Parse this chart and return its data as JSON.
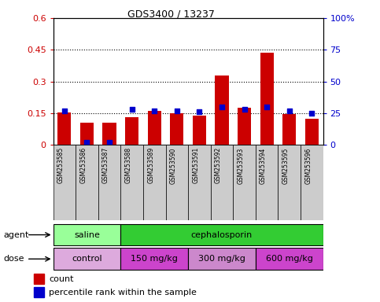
{
  "title": "GDS3400 / 13237",
  "samples": [
    "GSM253585",
    "GSM253586",
    "GSM253587",
    "GSM253588",
    "GSM253589",
    "GSM253590",
    "GSM253591",
    "GSM253592",
    "GSM253593",
    "GSM253594",
    "GSM253595",
    "GSM253596"
  ],
  "count_values": [
    0.155,
    0.105,
    0.105,
    0.13,
    0.16,
    0.15,
    0.138,
    0.33,
    0.175,
    0.435,
    0.148,
    0.125
  ],
  "percentile_values": [
    27,
    2,
    2,
    28,
    27,
    27,
    26,
    30,
    28,
    30,
    27,
    25
  ],
  "left_ylim": [
    0,
    0.6
  ],
  "right_ylim": [
    0,
    100
  ],
  "left_yticks": [
    0,
    0.15,
    0.3,
    0.45,
    0.6
  ],
  "right_yticks": [
    0,
    25,
    50,
    75,
    100
  ],
  "left_yticklabels": [
    "0",
    "0.15",
    "0.3",
    "0.45",
    "0.6"
  ],
  "right_yticklabels": [
    "0",
    "25",
    "50",
    "75",
    "100%"
  ],
  "bar_color": "#cc0000",
  "dot_color": "#0000cc",
  "agent_groups": [
    {
      "label": "saline",
      "start": 0,
      "end": 3,
      "color": "#99ff99"
    },
    {
      "label": "cephalosporin",
      "start": 3,
      "end": 12,
      "color": "#33cc33"
    }
  ],
  "dose_groups": [
    {
      "label": "control",
      "start": 0,
      "end": 3,
      "color": "#ddaadd"
    },
    {
      "label": "150 mg/kg",
      "start": 3,
      "end": 6,
      "color": "#dd44dd"
    },
    {
      "label": "300 mg/kg",
      "start": 6,
      "end": 9,
      "color": "#dd88dd"
    },
    {
      "label": "600 mg/kg",
      "start": 9,
      "end": 12,
      "color": "#dd44dd"
    }
  ],
  "xlabel_color": "#cc0000",
  "ylabel_right_color": "#0000cc",
  "xtick_bg_color": "#cccccc",
  "plot_bg": "#ffffff"
}
